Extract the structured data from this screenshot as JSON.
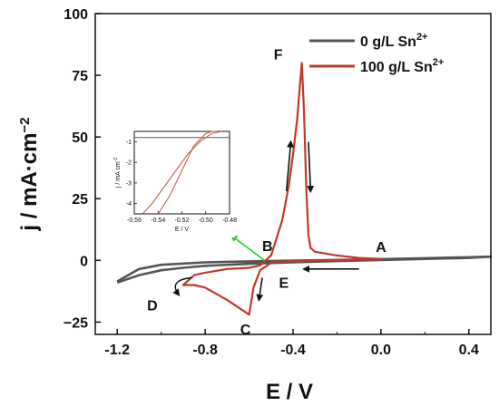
{
  "chart_data": {
    "type": "line",
    "title": "",
    "xlabel": "E / V",
    "ylabel": "j / mA·cm",
    "ylabel_sup": "−2",
    "xlim": [
      -1.3,
      0.5
    ],
    "ylim": [
      -30,
      100
    ],
    "x_ticks": [
      -1.2,
      -0.8,
      -0.4,
      0.0,
      0.4
    ],
    "x_tick_labels": [
      "-1.2",
      "-0.8",
      "-0.4",
      "0.0",
      "0.4"
    ],
    "y_ticks": [
      -25,
      0,
      25,
      50,
      75,
      100
    ],
    "y_tick_labels": [
      "−25",
      "0",
      "25",
      "50",
      "75",
      "100"
    ],
    "legend_position": "top-right",
    "legend": [
      {
        "label": "0 g/L Sn",
        "sup": "2+"
      },
      {
        "label": "100 g/L Sn",
        "sup": "2+"
      }
    ],
    "series": [
      {
        "name": "0 g/L Sn2+",
        "color": "#555555",
        "x": [
          -1.2,
          -1.1,
          -1.0,
          -0.9,
          -0.8,
          -0.6,
          -0.4,
          -0.2,
          0.0,
          0.2,
          0.4,
          0.5,
          0.4,
          0.2,
          0.0,
          -0.2,
          -0.4,
          -0.6,
          -0.8,
          -1.0,
          -1.1,
          -1.2
        ],
        "y": [
          -9,
          -6,
          -4,
          -3,
          -2.2,
          -1.4,
          -0.8,
          -0.3,
          0.1,
          0.6,
          1.0,
          1.5,
          1.3,
          0.9,
          0.5,
          0.2,
          -0.1,
          -0.4,
          -0.8,
          -1.8,
          -3.5,
          -8.5
        ]
      },
      {
        "name": "100 g/L Sn2+",
        "color": "#c0392b",
        "x": [
          0.0,
          -0.1,
          -0.2,
          -0.3,
          -0.4,
          -0.45,
          -0.5,
          -0.55,
          -0.58,
          -0.6,
          -0.7,
          -0.8,
          -0.85,
          -0.9,
          -0.85,
          -0.8,
          -0.7,
          -0.6,
          -0.55,
          -0.5,
          -0.45,
          -0.42,
          -0.4,
          -0.38,
          -0.37,
          -0.36,
          -0.35,
          -0.34,
          -0.33,
          -0.32,
          -0.3,
          -0.2,
          -0.1,
          0.0
        ],
        "y": [
          0.5,
          0.3,
          0.1,
          -0.1,
          -0.3,
          -0.5,
          -1.0,
          -4.0,
          -11.0,
          -22.0,
          -16.0,
          -11.0,
          -10.0,
          -10.0,
          -6.0,
          -5.0,
          -3.5,
          -3.0,
          -2.0,
          2.0,
          16.0,
          30.0,
          43.0,
          58.0,
          70.0,
          80.0,
          60.0,
          30.0,
          10.0,
          5.0,
          3.5,
          2.0,
          1.0,
          0.6
        ]
      }
    ],
    "annotations": [
      {
        "text": "A",
        "x": 0.0,
        "y": 0.5
      },
      {
        "text": "B",
        "x": -0.5,
        "y": 1.5
      },
      {
        "text": "C",
        "x": -0.6,
        "y": -22
      },
      {
        "text": "D",
        "x": -0.9,
        "y": -10
      },
      {
        "text": "E",
        "x": -0.5,
        "y": -3
      },
      {
        "text": "F",
        "x": -0.36,
        "y": 80
      }
    ],
    "inset": {
      "xlim": [
        -0.56,
        -0.48
      ],
      "ylim": [
        -4.5,
        -0.5
      ],
      "x_ticks": [
        -0.56,
        -0.54,
        -0.52,
        -0.5,
        -0.48
      ],
      "x_tick_labels": [
        "-0.56",
        "-0.54",
        "-0.52",
        "-0.50",
        "-0.48"
      ],
      "y_ticks": [
        -4,
        -3,
        -2,
        -1
      ],
      "y_tick_labels": [
        "-4",
        "-3",
        "-2",
        "-1"
      ],
      "xlabel": "E / V",
      "ylabel": "j / mA cm",
      "ylabel_sup": "-2",
      "series": [
        {
          "name": "0 g/L Sn2+",
          "color": "#555555",
          "x": [
            -0.56,
            -0.48
          ],
          "y": [
            -0.8,
            -0.8
          ]
        },
        {
          "name": "100 g/L Sn2+ forward",
          "color": "#b5543a",
          "x": [
            -0.553,
            -0.545,
            -0.535,
            -0.525,
            -0.515,
            -0.505,
            -0.495,
            -0.487
          ],
          "y": [
            -4.5,
            -4.0,
            -3.2,
            -2.4,
            -1.6,
            -1.0,
            -0.6,
            -0.5
          ]
        },
        {
          "name": "100 g/L Sn2+ reverse",
          "color": "#b5543a",
          "x": [
            -0.54,
            -0.53,
            -0.52,
            -0.51,
            -0.5,
            -0.495,
            -0.49
          ],
          "y": [
            -4.5,
            -3.6,
            -2.4,
            -1.2,
            -0.6,
            -0.5,
            -0.5
          ]
        }
      ]
    }
  }
}
